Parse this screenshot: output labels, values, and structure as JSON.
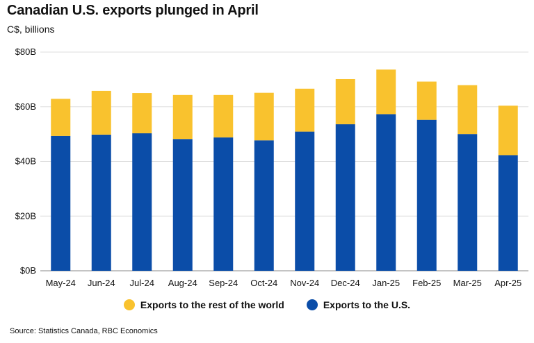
{
  "title": "Canadian U.S. exports plunged in April",
  "subtitle": "C$, billions",
  "source": "Source: Statistics Canada, RBC Economics",
  "colors": {
    "rest_of_world": "#F9C22E",
    "us": "#0B4DA8",
    "grid": "#dddddd",
    "axis": "#888888"
  },
  "chart_data": {
    "type": "bar",
    "stacked": true,
    "categories": [
      "May-24",
      "Jun-24",
      "Jul-24",
      "Aug-24",
      "Sep-24",
      "Oct-24",
      "Nov-24",
      "Dec-24",
      "Jan-25",
      "Feb-25",
      "Mar-25",
      "Apr-25"
    ],
    "series": [
      {
        "name": "Exports to the U.S.",
        "color": "#0B4DA8",
        "values": [
          49.3,
          49.8,
          50.3,
          48.2,
          48.8,
          47.7,
          50.9,
          53.6,
          57.3,
          55.2,
          50.0,
          42.3
        ]
      },
      {
        "name": "Exports to the rest of the world",
        "color": "#F9C22E",
        "values": [
          13.6,
          16.0,
          14.7,
          16.1,
          15.5,
          17.4,
          15.7,
          16.5,
          16.3,
          14.0,
          17.9,
          18.1
        ]
      }
    ],
    "yticks": [
      "$0B",
      "$20B",
      "$40B",
      "$60B",
      "$80B"
    ],
    "ylim": [
      0,
      80
    ],
    "grid": true,
    "legend": "bottom-center",
    "legend_items": [
      {
        "label": "Exports to the rest of the world",
        "color": "#F9C22E"
      },
      {
        "label": "Exports to the U.S.",
        "color": "#0B4DA8"
      }
    ]
  }
}
